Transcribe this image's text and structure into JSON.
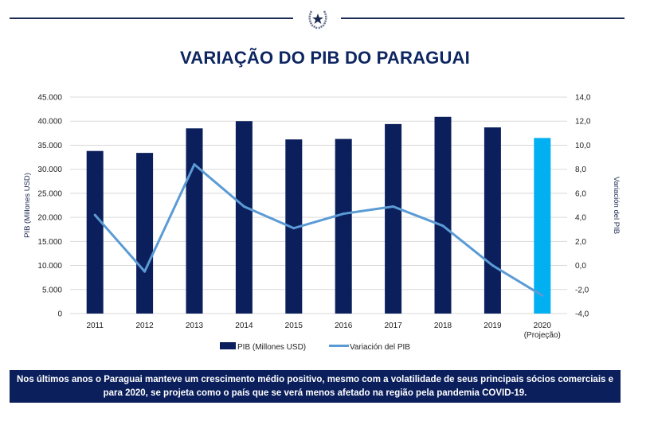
{
  "header": {
    "emblem": "star-wreath-emblem"
  },
  "title": "VARIAÇÃO DO PIB DO PARAGUAI",
  "chart_data": {
    "type": "bar+line",
    "categories": [
      "2011",
      "2012",
      "2013",
      "2014",
      "2015",
      "2016",
      "2017",
      "2018",
      "2019",
      "2020"
    ],
    "category_sublabels": {
      "2020": "(Projeção)"
    },
    "series": [
      {
        "name": "PIB (Millones USD)",
        "type": "bar",
        "axis": "left",
        "color": "#0b1f5c",
        "highlight_color": "#00b0f0",
        "values": [
          33800,
          33400,
          38500,
          40000,
          36200,
          36300,
          39400,
          40900,
          38700,
          36500
        ]
      },
      {
        "name": "Variación del PIB",
        "type": "line",
        "axis": "right",
        "color": "#5b9bd5",
        "values": [
          4.2,
          -0.5,
          8.4,
          4.9,
          3.1,
          4.3,
          4.9,
          3.3,
          0.0,
          -2.5
        ]
      }
    ],
    "left_axis": {
      "label": "PIB (Millones USD)",
      "ylim": [
        0,
        45000
      ],
      "ticks": [
        "0",
        "5.000",
        "10.000",
        "15.000",
        "20.000",
        "25.000",
        "30.000",
        "35.000",
        "40.000",
        "45.000"
      ]
    },
    "right_axis": {
      "label": "Variación del PIB",
      "ylim": [
        -4,
        14
      ],
      "ticks": [
        "-4,0",
        "-2,0",
        "0,0",
        "2,0",
        "4,0",
        "6,0",
        "8,0",
        "10,0",
        "12,0",
        "14,0"
      ]
    },
    "grid": true,
    "legend": "bottom"
  },
  "footer": {
    "line1": "Nos últimos anos o Paraguai manteve um crescimento médio positivo, mesmo com a volatilidade de seus principais sócios comerciais e",
    "line2": "para 2020, se projeta como o país que se verá menos afetado na região pela pandemia COVID-19."
  }
}
